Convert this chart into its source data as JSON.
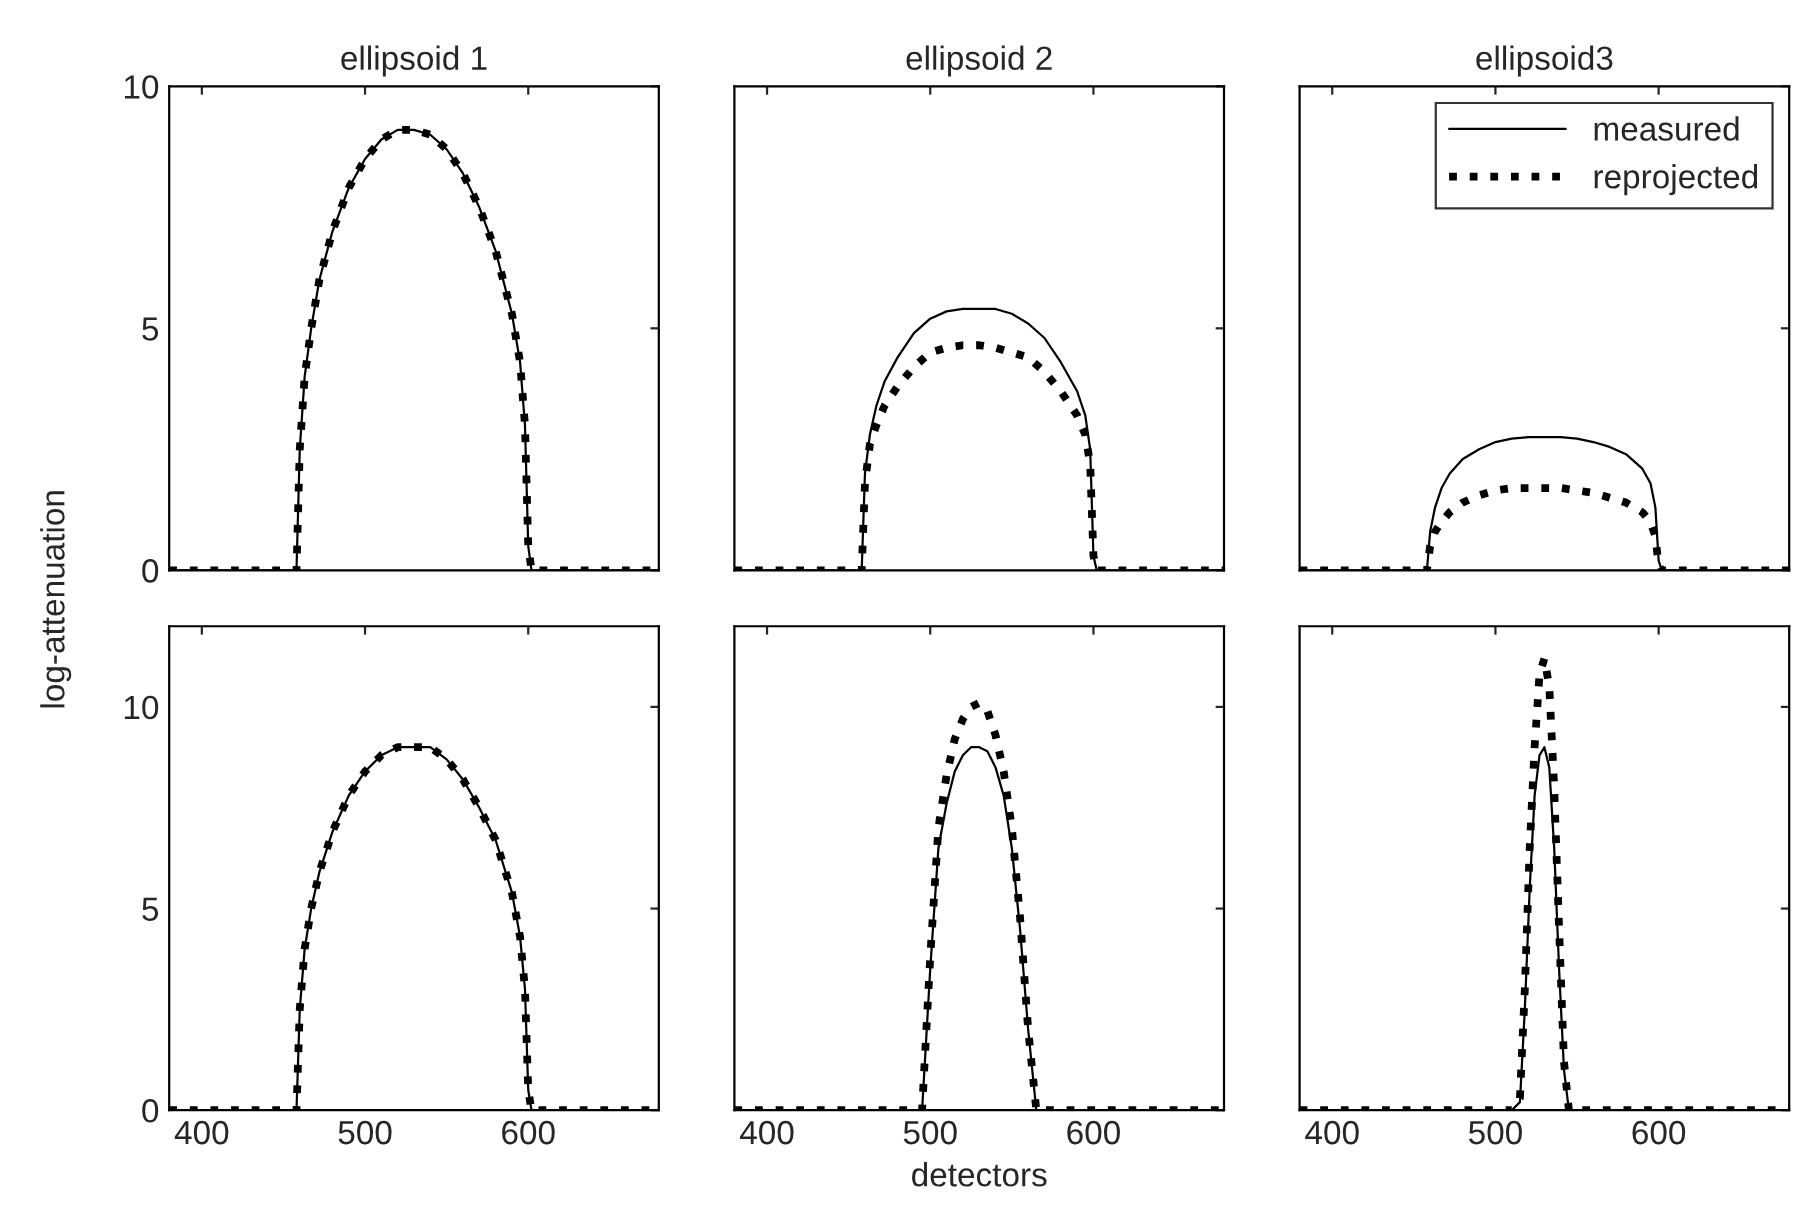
{
  "chart_data": [
    {
      "type": "line",
      "title": "ellipsoid 1",
      "ylabel": "log-attenuation",
      "xlim": [
        380,
        680
      ],
      "xticks": [
        400,
        500,
        600
      ],
      "ylim": [
        0,
        10
      ],
      "yticks": [
        0,
        5,
        10
      ],
      "tick_labels": "y",
      "grid": false,
      "legend": false,
      "x": [
        380,
        420,
        455,
        458,
        460,
        463,
        467,
        472,
        480,
        490,
        500,
        510,
        520,
        530,
        540,
        550,
        560,
        570,
        580,
        590,
        595,
        598,
        600,
        602,
        640,
        680
      ],
      "series": [
        {
          "color": "#000000",
          "line_style": "solid",
          "values": [
            0,
            0,
            0,
            0,
            2.5,
            4.0,
            5.0,
            6.0,
            7.0,
            7.9,
            8.5,
            8.9,
            9.1,
            9.1,
            9.0,
            8.7,
            8.2,
            7.5,
            6.6,
            5.3,
            4.3,
            3.0,
            0.5,
            0,
            0,
            0
          ]
        },
        {
          "color": "#000000",
          "line_style": "dotted",
          "values": [
            0,
            0,
            0,
            0,
            2.5,
            4.0,
            5.0,
            6.0,
            7.0,
            7.9,
            8.5,
            8.9,
            9.1,
            9.1,
            9.0,
            8.7,
            8.2,
            7.5,
            6.6,
            5.3,
            4.3,
            3.0,
            0.5,
            0,
            0,
            0
          ]
        }
      ]
    },
    {
      "type": "line",
      "title": "ellipsoid 2",
      "xlim": [
        380,
        680
      ],
      "xticks": [
        400,
        500,
        600
      ],
      "ylim": [
        0,
        10
      ],
      "yticks": [
        0,
        5,
        10
      ],
      "tick_labels": false,
      "grid": false,
      "legend": false,
      "x": [
        380,
        420,
        455,
        458,
        460,
        463,
        467,
        472,
        480,
        490,
        500,
        510,
        520,
        530,
        540,
        550,
        560,
        570,
        580,
        590,
        595,
        598,
        600,
        602,
        640,
        680
      ],
      "series": [
        {
          "color": "#000000",
          "line_style": "solid",
          "values": [
            0,
            0,
            0,
            0,
            2.0,
            2.8,
            3.4,
            3.9,
            4.4,
            4.9,
            5.2,
            5.35,
            5.4,
            5.4,
            5.4,
            5.3,
            5.1,
            4.8,
            4.3,
            3.7,
            3.2,
            2.5,
            0.3,
            0,
            0,
            0
          ]
        },
        {
          "color": "#000000",
          "line_style": "dotted",
          "values": [
            0,
            0,
            0,
            0,
            1.8,
            2.6,
            3.0,
            3.4,
            3.8,
            4.2,
            4.5,
            4.6,
            4.65,
            4.65,
            4.6,
            4.5,
            4.4,
            4.1,
            3.7,
            3.2,
            2.8,
            2.2,
            0.3,
            0,
            0,
            0
          ]
        }
      ]
    },
    {
      "type": "line",
      "title": "ellipsoid3",
      "xlim": [
        380,
        680
      ],
      "xticks": [
        400,
        500,
        600
      ],
      "ylim": [
        0,
        10
      ],
      "yticks": [
        0,
        5,
        10
      ],
      "tick_labels": false,
      "grid": false,
      "legend": "top right",
      "x": [
        380,
        420,
        455,
        458,
        460,
        463,
        467,
        472,
        480,
        490,
        500,
        510,
        520,
        530,
        540,
        550,
        560,
        570,
        580,
        590,
        595,
        598,
        600,
        602,
        640,
        680
      ],
      "series": [
        {
          "name": "measured",
          "color": "#000000",
          "line_style": "solid",
          "values": [
            0,
            0,
            0,
            0,
            0.8,
            1.3,
            1.7,
            2.0,
            2.3,
            2.5,
            2.65,
            2.72,
            2.75,
            2.75,
            2.75,
            2.72,
            2.65,
            2.55,
            2.4,
            2.1,
            1.8,
            1.3,
            0.2,
            0,
            0,
            0
          ]
        },
        {
          "name": "reprojected",
          "color": "#000000",
          "line_style": "dotted",
          "values": [
            0,
            0,
            0,
            0,
            0.5,
            0.8,
            1.0,
            1.2,
            1.4,
            1.55,
            1.65,
            1.7,
            1.7,
            1.7,
            1.7,
            1.65,
            1.6,
            1.5,
            1.4,
            1.2,
            1.0,
            0.7,
            0.1,
            0,
            0,
            0
          ]
        }
      ]
    },
    {
      "type": "line",
      "xlim": [
        380,
        680
      ],
      "xticks": [
        400,
        500,
        600
      ],
      "ylim": [
        0,
        12
      ],
      "yticks": [
        0,
        5,
        10
      ],
      "grid": false,
      "legend": false,
      "x": [
        380,
        420,
        455,
        458,
        460,
        463,
        467,
        472,
        480,
        490,
        500,
        510,
        520,
        530,
        540,
        550,
        560,
        570,
        580,
        590,
        595,
        598,
        600,
        602,
        640,
        680
      ],
      "series": [
        {
          "color": "#000000",
          "line_style": "solid",
          "values": [
            0,
            0,
            0,
            0,
            2.5,
            4.0,
            5.0,
            5.9,
            6.9,
            7.8,
            8.4,
            8.8,
            9.0,
            9.0,
            9.0,
            8.7,
            8.2,
            7.5,
            6.7,
            5.4,
            4.3,
            3.0,
            0.5,
            0,
            0,
            0
          ]
        },
        {
          "color": "#000000",
          "line_style": "dotted",
          "values": [
            0,
            0,
            0,
            0,
            2.5,
            4.0,
            5.0,
            5.9,
            6.9,
            7.8,
            8.4,
            8.8,
            9.0,
            9.0,
            9.0,
            8.7,
            8.2,
            7.5,
            6.7,
            5.4,
            4.3,
            3.0,
            0.5,
            0,
            0,
            0
          ]
        }
      ]
    },
    {
      "type": "line",
      "xlabel": "detectors",
      "xlim": [
        380,
        680
      ],
      "xticks": [
        400,
        500,
        600
      ],
      "ylim": [
        0,
        12
      ],
      "yticks": [
        0,
        5,
        10
      ],
      "tick_labels": "x",
      "grid": false,
      "legend": false,
      "x": [
        380,
        480,
        495,
        500,
        505,
        510,
        515,
        520,
        525,
        530,
        535,
        540,
        545,
        550,
        555,
        560,
        565,
        580,
        680
      ],
      "series": [
        {
          "color": "#000000",
          "line_style": "solid",
          "values": [
            0,
            0,
            0,
            3.5,
            6.5,
            7.6,
            8.4,
            8.8,
            9.0,
            9.0,
            8.9,
            8.5,
            7.8,
            6.5,
            4.5,
            2.0,
            0,
            0,
            0
          ]
        },
        {
          "color": "#000000",
          "line_style": "dotted",
          "values": [
            0,
            0,
            0,
            3.8,
            7.0,
            8.3,
            9.2,
            9.7,
            10.0,
            10.1,
            9.9,
            9.3,
            8.4,
            7.0,
            4.8,
            2.0,
            0,
            0,
            0
          ]
        }
      ]
    },
    {
      "type": "line",
      "xlim": [
        380,
        680
      ],
      "xticks": [
        400,
        500,
        600
      ],
      "ylim": [
        0,
        12
      ],
      "yticks": [
        0,
        5,
        10
      ],
      "tick_labels": "x",
      "grid": false,
      "legend": false,
      "x": [
        380,
        510,
        515,
        518,
        521,
        524,
        527,
        530,
        533,
        536,
        539,
        542,
        545,
        550,
        680
      ],
      "series": [
        {
          "color": "#000000",
          "line_style": "solid",
          "values": [
            0,
            0,
            0.2,
            2.5,
            5.5,
            7.8,
            8.8,
            9.0,
            8.5,
            6.5,
            3.5,
            1.0,
            0,
            0,
            0
          ]
        },
        {
          "color": "#000000",
          "line_style": "dotted",
          "values": [
            0,
            0,
            0.3,
            3.0,
            6.5,
            9.0,
            10.8,
            11.2,
            10.5,
            8.0,
            4.5,
            1.2,
            0,
            0,
            0
          ]
        }
      ]
    }
  ]
}
